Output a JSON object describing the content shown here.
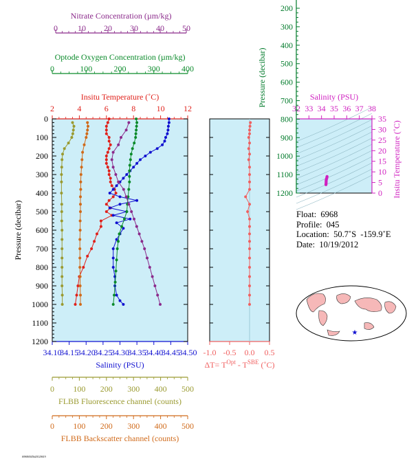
{
  "colors": {
    "plot_bg": "#cdeef8",
    "nitrate": "#8b2a8b",
    "oxygen": "#0a8a2a",
    "temperature": "#e0201a",
    "salinity": "#1010d0",
    "fluorescence": "#9a9a30",
    "backscatter": "#d06a1a",
    "delta_t": "#f06060",
    "pressure_axis": "#000000",
    "ts_temp_axis": "#d020c0",
    "ts_pressure_axis": "#007a2a"
  },
  "axes": {
    "nitrate": {
      "label": "Nitrate Concentration (µm/kg)",
      "ticks": [
        "0",
        "10",
        "20",
        "30",
        "40",
        "50"
      ],
      "range": [
        0,
        50
      ]
    },
    "oxygen": {
      "label": "Optode Oxygen Concentration (µm/kg)",
      "ticks": [
        "0",
        "100",
        "200",
        "300",
        "400"
      ],
      "range": [
        0,
        400
      ]
    },
    "temperature": {
      "label": "Insitu Temperature (˚C)",
      "ticks": [
        "2",
        "4",
        "6",
        "8",
        "10",
        "12"
      ],
      "range": [
        2,
        12
      ]
    },
    "pressure": {
      "label": "Pressure (decibar)",
      "ticks": [
        "0",
        "100",
        "200",
        "300",
        "400",
        "500",
        "600",
        "700",
        "800",
        "900",
        "1000",
        "1100",
        "1200"
      ],
      "range": [
        0,
        1200
      ]
    },
    "salinity": {
      "label": "Salinity (PSU)",
      "ticks": [
        "34.10",
        "34.15",
        "34.20",
        "34.25",
        "34.30",
        "34.35",
        "34.40",
        "34.45",
        "34.50"
      ],
      "range": [
        34.1,
        34.5
      ]
    },
    "fluorescence": {
      "label": "FLBB Fluorescence channel (counts)",
      "ticks": [
        "0",
        "100",
        "200",
        "300",
        "400",
        "500"
      ],
      "range": [
        0,
        500
      ]
    },
    "backscatter": {
      "label": "FLBB Backscatter channel (counts)",
      "ticks": [
        "0",
        "100",
        "200",
        "300",
        "400",
        "500"
      ],
      "range": [
        0,
        500
      ]
    },
    "delta_t": {
      "label_main": "ΔT= T",
      "sup1": "Opt",
      "label_mid": " - T",
      "sup2": "SBE",
      "label_end": " (˚C)",
      "ticks": [
        "-1.0",
        "-0.5",
        "0.0",
        "0.5"
      ],
      "range": [
        -1,
        0.5
      ]
    },
    "ts_salinity": {
      "label": "Salinity (PSU)",
      "ticks": [
        "32",
        "33",
        "34",
        "35",
        "36",
        "37",
        "38"
      ],
      "range": [
        32,
        38
      ]
    },
    "ts_temperature": {
      "label": "Insitu Temperature (˚C)",
      "ticks": [
        "0",
        "5",
        "10",
        "15",
        "20",
        "25",
        "30",
        "35"
      ],
      "range": [
        0,
        35
      ]
    },
    "ts_pressure": {
      "label": "Pressure (decibar)",
      "ticks": [
        "200",
        "300",
        "400",
        "500",
        "600",
        "700",
        "800",
        "900",
        "1000",
        "1100",
        "1200"
      ],
      "range": [
        200,
        1200
      ]
    }
  },
  "info": {
    "float": "Float:  6968",
    "profile": "Profile:  045",
    "location": "Location:  50.7˚S  -159.9˚E",
    "date": "Date:  10/19/2012"
  },
  "footer_tiny": "f6968f045b20120619",
  "chart_data": {
    "type": "line",
    "y_axis": "pressure",
    "series": [
      {
        "name": "Temperature",
        "color": "temperature",
        "points": [
          [
            6.2,
            0
          ],
          [
            6.1,
            20
          ],
          [
            6.0,
            40
          ],
          [
            6.0,
            60
          ],
          [
            6.0,
            80
          ],
          [
            6.2,
            100
          ],
          [
            6.2,
            120
          ],
          [
            6.3,
            140
          ],
          [
            6.2,
            160
          ],
          [
            6.1,
            180
          ],
          [
            6.0,
            200
          ],
          [
            6.0,
            220
          ],
          [
            6.0,
            240
          ],
          [
            6.1,
            260
          ],
          [
            6.2,
            280
          ],
          [
            6.2,
            300
          ],
          [
            6.3,
            320
          ],
          [
            6.3,
            340
          ],
          [
            6.4,
            360
          ],
          [
            6.6,
            380
          ],
          [
            6.7,
            400
          ],
          [
            6.5,
            420
          ],
          [
            6.2,
            440
          ],
          [
            6.0,
            460
          ],
          [
            6.3,
            480
          ],
          [
            6.0,
            500
          ],
          [
            6.4,
            520
          ],
          [
            5.6,
            550
          ],
          [
            5.6,
            580
          ],
          [
            5.3,
            620
          ],
          [
            5.1,
            660
          ],
          [
            4.9,
            700
          ],
          [
            4.6,
            740
          ],
          [
            4.3,
            800
          ],
          [
            4.0,
            850
          ],
          [
            3.9,
            900
          ],
          [
            3.8,
            950
          ],
          [
            3.7,
            1000
          ]
        ]
      },
      {
        "name": "Salinity",
        "color": "salinity",
        "points": [
          [
            34.445,
            0
          ],
          [
            34.445,
            20
          ],
          [
            34.443,
            40
          ],
          [
            34.442,
            60
          ],
          [
            34.44,
            80
          ],
          [
            34.435,
            100
          ],
          [
            34.432,
            120
          ],
          [
            34.425,
            140
          ],
          [
            34.41,
            160
          ],
          [
            34.39,
            180
          ],
          [
            34.375,
            200
          ],
          [
            34.36,
            220
          ],
          [
            34.35,
            240
          ],
          [
            34.34,
            260
          ],
          [
            34.33,
            280
          ],
          [
            34.32,
            300
          ],
          [
            34.31,
            320
          ],
          [
            34.3,
            340
          ],
          [
            34.29,
            360
          ],
          [
            34.28,
            380
          ],
          [
            34.27,
            400
          ],
          [
            34.3,
            420
          ],
          [
            34.35,
            440
          ],
          [
            34.3,
            460
          ],
          [
            34.27,
            480
          ],
          [
            34.32,
            500
          ],
          [
            34.28,
            520
          ],
          [
            34.33,
            540
          ],
          [
            34.29,
            560
          ],
          [
            34.31,
            590
          ],
          [
            34.3,
            620
          ],
          [
            34.29,
            650
          ],
          [
            34.28,
            700
          ],
          [
            34.28,
            750
          ],
          [
            34.28,
            800
          ],
          [
            34.285,
            850
          ],
          [
            34.285,
            900
          ],
          [
            34.29,
            950
          ],
          [
            34.3,
            980
          ],
          [
            34.31,
            1000
          ]
        ]
      },
      {
        "name": "Oxygen",
        "color": "oxygen",
        "points": [
          [
            248,
            0
          ],
          [
            250,
            20
          ],
          [
            249,
            40
          ],
          [
            248,
            60
          ],
          [
            247,
            80
          ],
          [
            246,
            100
          ],
          [
            242,
            130
          ],
          [
            237,
            160
          ],
          [
            233,
            190
          ],
          [
            231,
            220
          ],
          [
            229,
            250
          ],
          [
            228,
            280
          ],
          [
            228,
            310
          ],
          [
            228,
            340
          ],
          [
            226,
            380
          ],
          [
            224,
            420
          ],
          [
            222,
            460
          ],
          [
            220,
            500
          ],
          [
            213,
            540
          ],
          [
            205,
            580
          ],
          [
            198,
            620
          ],
          [
            195,
            660
          ],
          [
            192,
            700
          ],
          [
            190,
            760
          ],
          [
            188,
            820
          ],
          [
            186,
            880
          ],
          [
            183,
            950
          ],
          [
            180,
            1000
          ]
        ]
      },
      {
        "name": "Nitrate",
        "color": "nitrate",
        "points": [
          [
            28,
            20
          ],
          [
            27,
            60
          ],
          [
            25,
            100
          ],
          [
            24,
            140
          ],
          [
            22,
            180
          ],
          [
            21.5,
            220
          ],
          [
            22,
            260
          ],
          [
            23,
            300
          ],
          [
            24,
            340
          ],
          [
            26,
            380
          ],
          [
            27,
            420
          ],
          [
            28,
            460
          ],
          [
            29,
            500
          ],
          [
            30,
            540
          ],
          [
            31,
            580
          ],
          [
            32,
            620
          ],
          [
            33,
            660
          ],
          [
            34,
            700
          ],
          [
            35,
            750
          ],
          [
            36,
            800
          ],
          [
            37,
            850
          ],
          [
            38,
            900
          ],
          [
            39,
            950
          ],
          [
            40,
            1000
          ]
        ]
      },
      {
        "name": "Fluorescence",
        "color": "fluorescence",
        "points": [
          [
            75,
            20
          ],
          [
            80,
            40
          ],
          [
            78,
            60
          ],
          [
            76,
            80
          ],
          [
            72,
            100
          ],
          [
            60,
            130
          ],
          [
            45,
            160
          ],
          [
            38,
            190
          ],
          [
            36,
            220
          ],
          [
            35,
            260
          ],
          [
            34,
            300
          ],
          [
            34,
            340
          ],
          [
            34,
            400
          ],
          [
            35,
            460
          ],
          [
            35,
            500
          ],
          [
            35,
            550
          ],
          [
            36,
            600
          ],
          [
            36,
            650
          ],
          [
            36,
            700
          ],
          [
            36,
            750
          ],
          [
            36,
            800
          ],
          [
            36,
            850
          ],
          [
            36,
            900
          ],
          [
            37,
            950
          ],
          [
            37,
            1000
          ]
        ]
      },
      {
        "name": "Backscatter",
        "color": "backscatter",
        "points": [
          [
            130,
            20
          ],
          [
            132,
            40
          ],
          [
            130,
            60
          ],
          [
            128,
            80
          ],
          [
            125,
            100
          ],
          [
            118,
            140
          ],
          [
            112,
            180
          ],
          [
            110,
            220
          ],
          [
            108,
            260
          ],
          [
            106,
            300
          ],
          [
            105,
            340
          ],
          [
            105,
            380
          ],
          [
            104,
            420
          ],
          [
            104,
            460
          ],
          [
            104,
            500
          ],
          [
            103,
            550
          ],
          [
            103,
            600
          ],
          [
            102,
            650
          ],
          [
            102,
            700
          ],
          [
            102,
            750
          ],
          [
            102,
            800
          ],
          [
            103,
            850
          ],
          [
            103,
            900
          ],
          [
            104,
            950
          ],
          [
            104,
            1000
          ]
        ]
      },
      {
        "name": "DeltaT",
        "color": "delta_t",
        "points": [
          [
            0.02,
            20
          ],
          [
            0.01,
            40
          ],
          [
            0.0,
            60
          ],
          [
            0.0,
            80
          ],
          [
            -0.02,
            100
          ],
          [
            0.0,
            130
          ],
          [
            -0.02,
            160
          ],
          [
            0.0,
            190
          ],
          [
            -0.02,
            220
          ],
          [
            0.0,
            260
          ],
          [
            0.0,
            300
          ],
          [
            0.0,
            340
          ],
          [
            0.0,
            380
          ],
          [
            -0.1,
            420
          ],
          [
            0.0,
            460
          ],
          [
            -0.05,
            500
          ],
          [
            0.0,
            540
          ],
          [
            0.0,
            580
          ],
          [
            0.0,
            620
          ],
          [
            0.0,
            660
          ],
          [
            0.0,
            700
          ],
          [
            0.0,
            750
          ],
          [
            0.0,
            800
          ],
          [
            0.0,
            850
          ],
          [
            0.0,
            900
          ],
          [
            0.0,
            950
          ],
          [
            0.0,
            1000
          ]
        ]
      },
      {
        "name": "TS",
        "color": "ts_temp_axis",
        "points": [
          [
            34.35,
            4.0
          ],
          [
            34.36,
            4.6
          ],
          [
            34.37,
            5.2
          ],
          [
            34.37,
            5.8
          ],
          [
            34.38,
            6.3
          ],
          [
            34.4,
            6.8
          ],
          [
            34.42,
            7.2
          ],
          [
            34.44,
            7.8
          ]
        ]
      }
    ]
  }
}
